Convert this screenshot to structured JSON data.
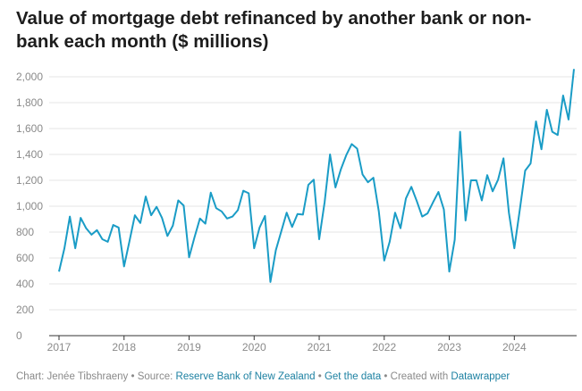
{
  "colors": {
    "line": "#1a9cc6",
    "grid": "#e6e6e6",
    "axis": "#333333",
    "label": "#8a8a8a",
    "link": "#1d81a2"
  },
  "footer": {
    "chart_prefix": "Chart: Jenée Tibshraeny • Source: ",
    "source_link": "Reserve Bank of New Zealand",
    "sep1": " • ",
    "data_link": "Get the data",
    "created_prefix": " • Created with ",
    "tool_link": "Datawrapper"
  },
  "chart_data": {
    "type": "line",
    "title": "Value of mortgage debt refinanced by another bank or non-bank each month ($ millions)",
    "xlabel": "",
    "ylabel": "",
    "ylim": [
      0,
      2000
    ],
    "yticks": [
      0,
      200,
      400,
      600,
      800,
      1000,
      1200,
      1400,
      1600,
      1800,
      2000
    ],
    "ytick_labels": [
      "0",
      "200",
      "400",
      "600",
      "800",
      "1,000",
      "1,200",
      "1,400",
      "1,600",
      "1,800",
      "2,000"
    ],
    "xticks": [
      "2017",
      "2018",
      "2019",
      "2020",
      "2021",
      "2022",
      "2023",
      "2024"
    ],
    "x_start": "2017-01",
    "grid": true,
    "values": [
      495,
      675,
      920,
      675,
      910,
      830,
      780,
      815,
      745,
      725,
      855,
      835,
      535,
      730,
      930,
      870,
      1075,
      930,
      995,
      910,
      770,
      850,
      1045,
      1005,
      605,
      760,
      905,
      865,
      1105,
      985,
      960,
      905,
      920,
      970,
      1120,
      1100,
      675,
      835,
      925,
      415,
      660,
      805,
      950,
      840,
      940,
      935,
      1165,
      1205,
      745,
      1030,
      1400,
      1145,
      1285,
      1395,
      1480,
      1445,
      1245,
      1185,
      1220,
      960,
      580,
      725,
      950,
      830,
      1060,
      1150,
      1040,
      920,
      945,
      1030,
      1110,
      975,
      495,
      740,
      1575,
      890,
      1200,
      1200,
      1045,
      1240,
      1115,
      1205,
      1370,
      950,
      675,
      970,
      1275,
      1330,
      1655,
      1440,
      1745,
      1575,
      1550,
      1855,
      1670,
      2060
    ]
  }
}
